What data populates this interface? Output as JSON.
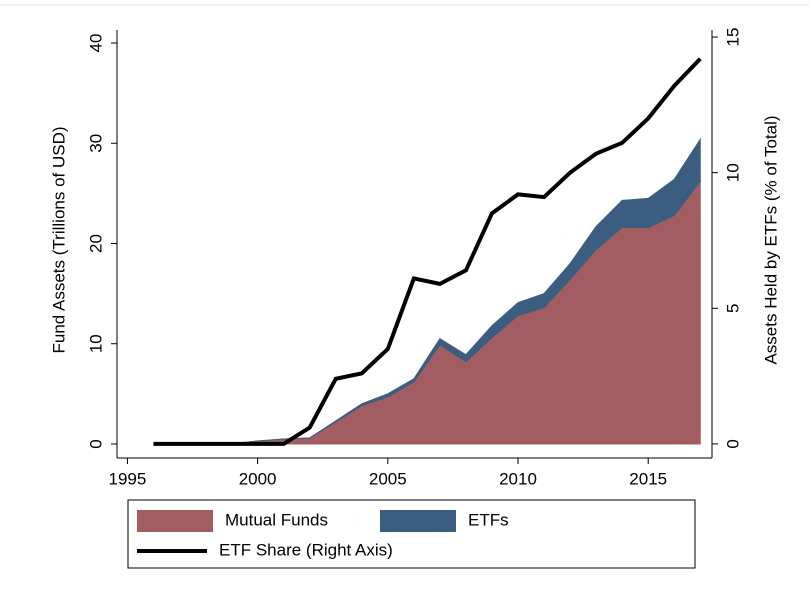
{
  "chart_data": {
    "type": "area",
    "x": [
      1996,
      1997,
      1998,
      1999,
      2000,
      2001,
      2002,
      2003,
      2004,
      2005,
      2006,
      2007,
      2008,
      2009,
      2010,
      2011,
      2012,
      2013,
      2014,
      2015,
      2016,
      2017
    ],
    "xlim": [
      1994.6,
      2017.45
    ],
    "xticks": [
      1995,
      2000,
      2005,
      2010,
      2015
    ],
    "ylim": [
      -1.4,
      41.3
    ],
    "yticks": [
      0,
      10,
      20,
      30,
      40
    ],
    "ylabel": "Fund Assets (Trillions of USD)",
    "y2lim": [
      -0.52,
      15.26
    ],
    "y2ticks": [
      0,
      5,
      10,
      15
    ],
    "y2label": "Assets Held by ETFs (% of Total)",
    "stacked": true,
    "series": [
      {
        "name": "Mutual Funds",
        "type": "area",
        "color": "#a25d63",
        "values": [
          0,
          0,
          0,
          0,
          0.3,
          0.5,
          0.6,
          2.2,
          3.8,
          4.7,
          6.2,
          9.9,
          8.2,
          10.6,
          12.8,
          13.6,
          16.4,
          19.4,
          21.6,
          21.6,
          22.8,
          26.2
        ]
      },
      {
        "name": "ETFs",
        "type": "area",
        "color": "#3b5e80",
        "values": [
          0,
          0,
          0,
          0,
          0,
          0,
          0,
          0.1,
          0.2,
          0.3,
          0.3,
          0.6,
          0.7,
          1.2,
          1.3,
          1.4,
          1.6,
          2.3,
          2.7,
          2.9,
          3.6,
          4.2
        ]
      },
      {
        "name": "ETF Share (Right Axis)",
        "type": "line",
        "axis": "y2",
        "color": "#000000",
        "values": [
          0,
          0,
          0,
          0,
          0,
          0,
          0.6,
          2.4,
          2.6,
          3.5,
          6.1,
          5.9,
          6.4,
          8.5,
          9.2,
          9.1,
          10.0,
          10.7,
          11.1,
          12.0,
          13.2,
          14.2
        ]
      }
    ]
  }
}
